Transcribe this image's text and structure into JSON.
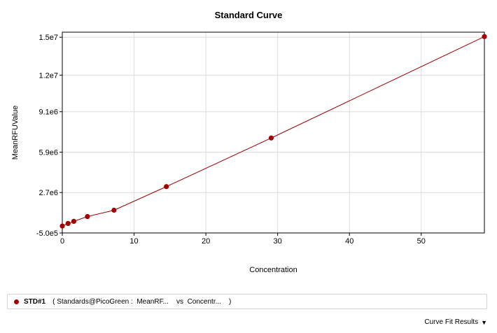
{
  "chart_data": {
    "type": "line",
    "title": "Standard Curve",
    "xlabel": "Concentration",
    "ylabel": "MeanRFUValue",
    "xlim": [
      0,
      58.8
    ],
    "ylim": [
      -500000,
      15400000
    ],
    "x_ticks": [
      0,
      10,
      20,
      30,
      40,
      50
    ],
    "x_tick_labels": [
      "0",
      "10",
      "20",
      "30",
      "40",
      "50"
    ],
    "y_ticks": [
      -500000,
      2700000,
      5900000,
      9100000,
      12000000,
      15000000
    ],
    "y_tick_labels": [
      "-5.0e5",
      "2.7e6",
      "5.9e6",
      "9.1e6",
      "1.2e7",
      "1.5e7"
    ],
    "grid": true,
    "series": [
      {
        "name": "STD#1",
        "color": "#a00000",
        "x": [
          0.0,
          0.8,
          1.6,
          3.5,
          7.2,
          14.5,
          29.1,
          58.8
        ],
        "y": [
          50000,
          250000,
          420000,
          800000,
          1300000,
          3170000,
          7020000,
          15050000
        ]
      }
    ]
  },
  "legend": {
    "name": "STD#1",
    "description": "( Standards@PicoGreen :  MeanRF...    vs  Concentr...    )"
  },
  "footer": {
    "curve_fit_label": "Curve Fit Results"
  }
}
